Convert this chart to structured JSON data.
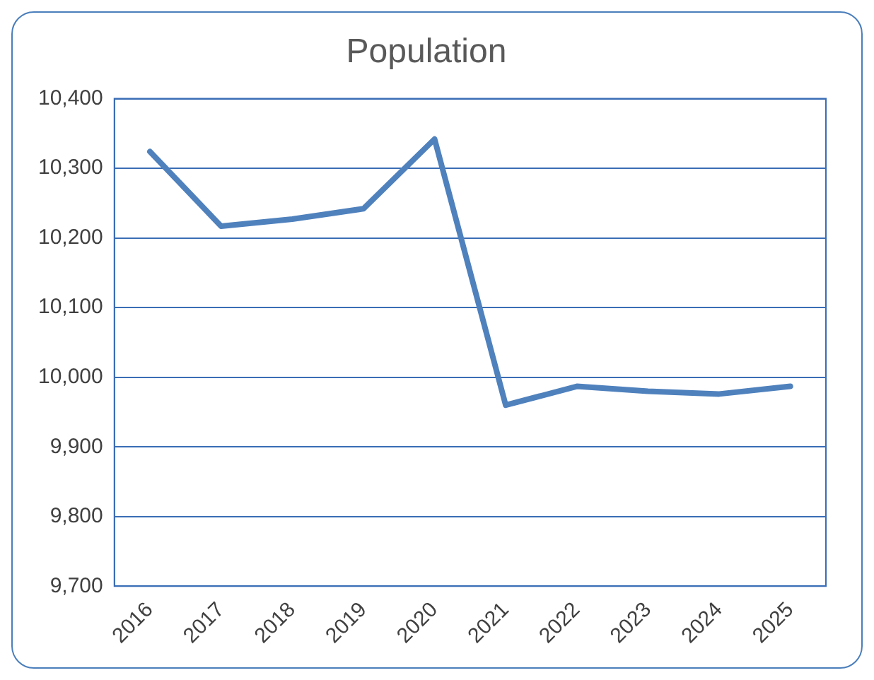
{
  "chart_data": {
    "type": "line",
    "title": "Population",
    "categories": [
      "2016",
      "2017",
      "2018",
      "2019",
      "2020",
      "2021",
      "2022",
      "2023",
      "2024",
      "2025"
    ],
    "series": [
      {
        "color": "#4f81bd",
        "values": [
          10324,
          10217,
          10227,
          10242,
          10342,
          9960,
          9987,
          9980,
          9976,
          9987
        ]
      }
    ],
    "ylim": [
      9700,
      10400
    ],
    "yticks": [
      {
        "value": 9700,
        "label": "9,700"
      },
      {
        "value": 9800,
        "label": "9,800"
      },
      {
        "value": 9900,
        "label": "9,900"
      },
      {
        "value": 10000,
        "label": "10,000"
      },
      {
        "value": 10100,
        "label": "10,100"
      },
      {
        "value": 10200,
        "label": "10,200"
      },
      {
        "value": 10300,
        "label": "10,300"
      },
      {
        "value": 10400,
        "label": "10,400"
      }
    ],
    "grid": "y",
    "legend": false,
    "marker": "none",
    "line_style": "solid"
  }
}
